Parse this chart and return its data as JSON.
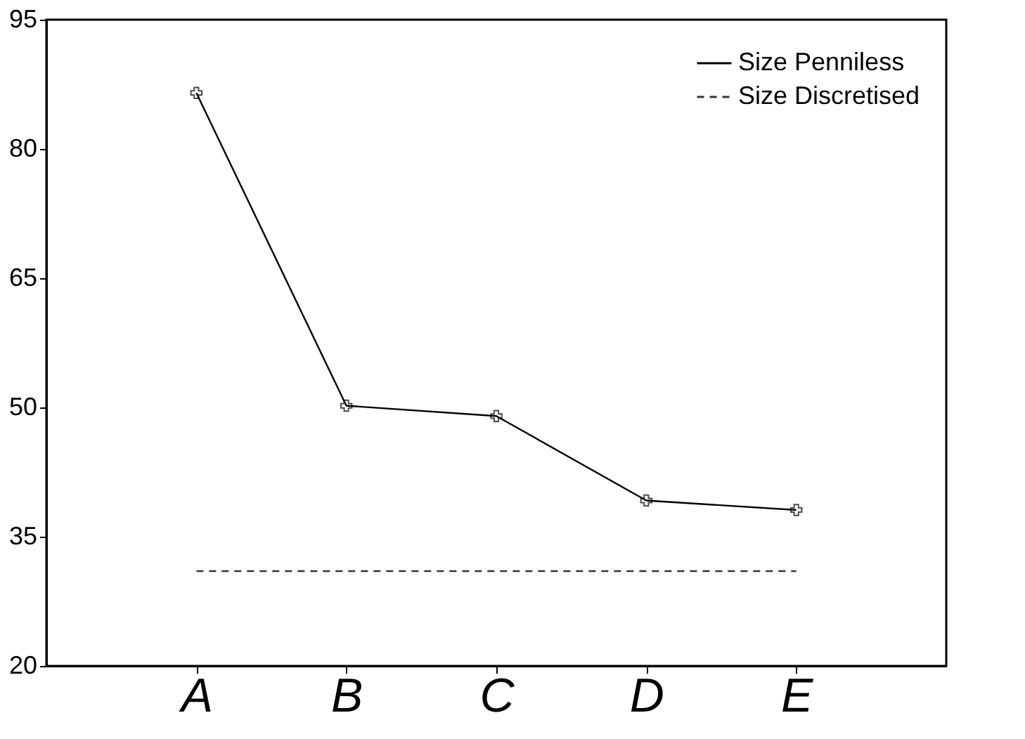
{
  "chart_data": {
    "type": "line",
    "categories": [
      "A",
      "B",
      "C",
      "D",
      "E"
    ],
    "series": [
      {
        "name": "Size Penniless",
        "color": "#000000",
        "values": [
          86.5,
          50.2,
          49.0,
          39.2,
          38.1
        ],
        "marker": "cross",
        "line_style": "solid"
      },
      {
        "name": "Size Discretised",
        "color": "#333333",
        "values": [
          31.0,
          31.0,
          31.0,
          31.0,
          31.0
        ],
        "marker": "none",
        "line_style": "dashed"
      }
    ],
    "ylim": [
      20,
      95
    ],
    "yticks": [
      20,
      35,
      50,
      65,
      80,
      95
    ],
    "grid": false,
    "legend": "top right"
  }
}
